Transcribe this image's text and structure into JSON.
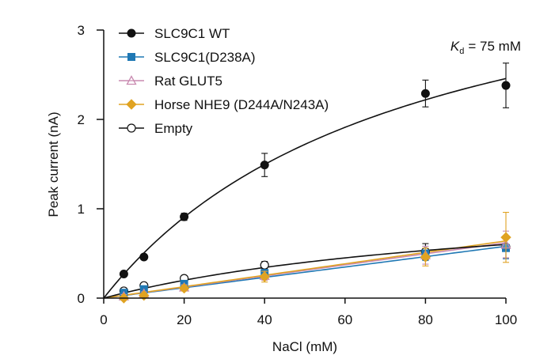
{
  "chart_data": {
    "type": "scatter",
    "title": "",
    "xlabel": "NaCl (mM)",
    "ylabel": "Peak current (nA)",
    "xlim": [
      0,
      100
    ],
    "ylim": [
      0,
      3
    ],
    "x_ticks": [
      0,
      20,
      40,
      60,
      80,
      100
    ],
    "y_ticks": [
      0,
      1,
      2,
      3
    ],
    "legend_position": "top-left",
    "annotation": {
      "symbol": "K",
      "subscript": "d",
      "text": "= 75 mM"
    },
    "series": [
      {
        "name": "SLC9C1 WT",
        "color": "#111111",
        "marker": "circle-filled",
        "x": [
          5,
          10,
          20,
          40,
          80,
          100
        ],
        "y": [
          0.27,
          0.46,
          0.91,
          1.49,
          2.29,
          2.38
        ],
        "err": [
          0.02,
          0.03,
          0.04,
          0.13,
          0.15,
          0.25
        ],
        "fit": {
          "model": "michaelis-menten",
          "vmax": 4.3,
          "kd": 75
        }
      },
      {
        "name": "SLC9C1(D238A)",
        "color": "#1f78b4",
        "marker": "square-filled",
        "x": [
          5,
          10,
          20,
          40,
          80,
          100
        ],
        "y": [
          0.06,
          0.1,
          0.16,
          0.28,
          0.5,
          0.56
        ],
        "err": [
          0.02,
          0.02,
          0.03,
          0.04,
          0.08,
          0.12
        ],
        "fit": {
          "model": "linear",
          "slope": 0.0058
        }
      },
      {
        "name": "Rat GLUT5",
        "color": "#c98ab0",
        "marker": "triangle-open",
        "x": [
          5,
          10,
          20,
          40,
          80,
          100
        ],
        "y": [
          0.02,
          0.05,
          0.12,
          0.25,
          0.48,
          0.6
        ],
        "err": [
          0.02,
          0.02,
          0.03,
          0.05,
          0.1,
          0.15
        ],
        "fit": {
          "model": "linear",
          "slope": 0.0062
        }
      },
      {
        "name": "Horse NHE9 (D244A/N243A)",
        "color": "#e0a322",
        "marker": "diamond-filled",
        "x": [
          5,
          10,
          20,
          40,
          80,
          100
        ],
        "y": [
          0.0,
          0.03,
          0.11,
          0.24,
          0.46,
          0.68
        ],
        "err": [
          0.02,
          0.02,
          0.03,
          0.06,
          0.1,
          0.28
        ],
        "fit": {
          "model": "linear",
          "slope": 0.0064
        }
      },
      {
        "name": "Empty",
        "color": "#111111",
        "marker": "circle-open",
        "x": [
          5,
          10,
          20,
          40,
          80,
          100
        ],
        "y": [
          0.08,
          0.14,
          0.22,
          0.37,
          0.52,
          0.57
        ],
        "err": [
          0.02,
          0.02,
          0.03,
          0.04,
          0.09,
          0.12
        ],
        "fit": {
          "model": "michaelis-menten",
          "vmax": 1.2,
          "kd": 100
        }
      }
    ]
  }
}
